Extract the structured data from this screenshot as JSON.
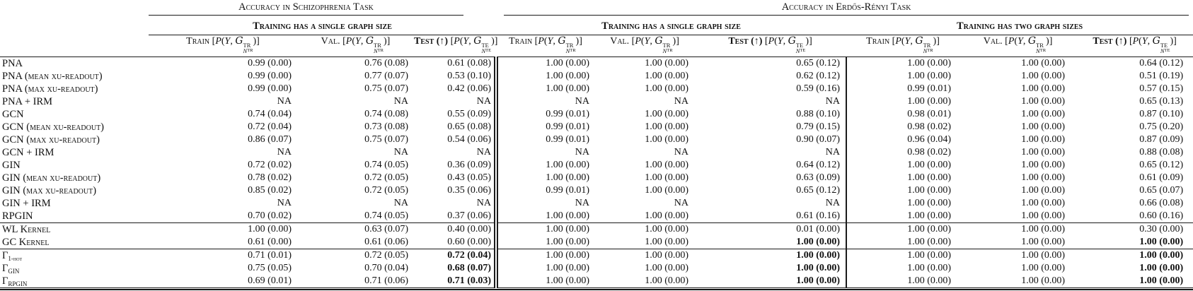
{
  "table": {
    "groups": [
      {
        "title": "Accuracy in Schizophrenia Task"
      },
      {
        "title": "Accuracy in Erdős-Rényi Task"
      }
    ],
    "subgroups": [
      {
        "title": "Training has a single graph size"
      },
      {
        "title": "Training has a single graph size"
      },
      {
        "title": "Training has two graph sizes"
      }
    ],
    "col_headers": [
      {
        "key": "schizo-train",
        "label": "Train",
        "bold": false,
        "arrow": "",
        "formula": {
          "open": "[",
          "func": "P",
          "lp": "(",
          "y": "Y",
          "sep": ", ",
          "g": "G",
          "g_sup": "TR",
          "n_base": "N",
          "n_sup": "TR",
          "close": ")]"
        }
      },
      {
        "key": "schizo-val",
        "label": "Val.",
        "bold": false,
        "arrow": "",
        "formula": {
          "open": "[",
          "func": "P",
          "lp": "(",
          "y": "Y",
          "sep": ", ",
          "g": "G",
          "g_sup": "TR",
          "n_base": "N",
          "n_sup": "TR",
          "close": ")]"
        }
      },
      {
        "key": "schizo-test",
        "label": "Test",
        "bold": true,
        "arrow": "(↑)",
        "formula": {
          "open": "[",
          "func": "P",
          "lp": "(",
          "y": "Y",
          "sep": ", ",
          "g": "G",
          "g_sup": "TE",
          "n_base": "N",
          "n_sup": "TE",
          "close": ")]"
        }
      },
      {
        "key": "er-single-train",
        "label": "Train",
        "bold": false,
        "arrow": "",
        "formula": {
          "open": "[",
          "func": "P",
          "lp": "(",
          "y": "Y",
          "sep": ", ",
          "g": "G",
          "g_sup": "TR",
          "n_base": "N",
          "n_sup": "TR",
          "close": ")]"
        }
      },
      {
        "key": "er-single-val",
        "label": "Val.",
        "bold": false,
        "arrow": "",
        "formula": {
          "open": "[",
          "func": "P",
          "lp": "(",
          "y": "Y",
          "sep": ", ",
          "g": "G",
          "g_sup": "TR",
          "n_base": "N",
          "n_sup": "TR",
          "close": ")]"
        }
      },
      {
        "key": "er-single-test",
        "label": "Test",
        "bold": true,
        "arrow": "(↑)",
        "formula": {
          "open": "[",
          "func": "P",
          "lp": "(",
          "y": "Y",
          "sep": ", ",
          "g": "G",
          "g_sup": "TE",
          "n_base": "N",
          "n_sup": "TE",
          "close": ")]"
        }
      },
      {
        "key": "er-two-train",
        "label": "Train",
        "bold": false,
        "arrow": "",
        "formula": {
          "open": "[",
          "func": "P",
          "lp": "(",
          "y": "Y",
          "sep": ", ",
          "g": "G",
          "g_sup": "TR",
          "n_base": "N",
          "n_sup": "TR",
          "close": ")]"
        }
      },
      {
        "key": "er-two-val",
        "label": "Val.",
        "bold": false,
        "arrow": "",
        "formula": {
          "open": "[",
          "func": "P",
          "lp": "(",
          "y": "Y",
          "sep": ", ",
          "g": "G",
          "g_sup": "TR",
          "n_base": "N",
          "n_sup": "TR",
          "close": ")]"
        }
      },
      {
        "key": "er-two-test",
        "label": "Test",
        "bold": true,
        "arrow": "(↑)",
        "formula": {
          "open": "[",
          "func": "P",
          "lp": "(",
          "y": "Y",
          "sep": ", ",
          "g": "G",
          "g_sup": "TE",
          "n_base": "N",
          "n_sup": "TE",
          "close": ")]"
        }
      }
    ],
    "rows": [
      {
        "label": "PNA",
        "sub": "",
        "rule_above": false,
        "bold": [],
        "cells": [
          "0.99 (0.00)",
          "0.76 (0.08)",
          "0.61 (0.08)",
          "1.00 (0.00)",
          "1.00 (0.00)",
          "0.65 (0.12)",
          "1.00 (0.00)",
          "1.00 (0.00)",
          "0.64 (0.12)"
        ]
      },
      {
        "label": "PNA (mean xu-readout)",
        "sub": "",
        "rule_above": false,
        "bold": [],
        "cells": [
          "0.99 (0.00)",
          "0.77 (0.07)",
          "0.53 (0.10)",
          "1.00 (0.00)",
          "1.00 (0.00)",
          "0.62 (0.12)",
          "1.00 (0.00)",
          "1.00 (0.00)",
          "0.51 (0.19)"
        ]
      },
      {
        "label": "PNA (max xu-readout)",
        "sub": "",
        "rule_above": false,
        "bold": [],
        "cells": [
          "0.99 (0.00)",
          "0.75 (0.07)",
          "0.42 (0.06)",
          "1.00 (0.00)",
          "1.00 (0.00)",
          "0.59 (0.16)",
          "0.99 (0.01)",
          "1.00 (0.00)",
          "0.57 (0.15)"
        ]
      },
      {
        "label": "PNA + IRM",
        "sub": "",
        "rule_above": false,
        "bold": [],
        "cells": [
          "NA",
          "NA",
          "NA",
          "NA",
          "NA",
          "NA",
          "1.00 (0.00)",
          "1.00 (0.00)",
          "0.65 (0.13)"
        ]
      },
      {
        "label": "GCN",
        "sub": "",
        "rule_above": false,
        "bold": [],
        "cells": [
          "0.74 (0.04)",
          "0.74 (0.08)",
          "0.55 (0.09)",
          "0.99 (0.01)",
          "1.00 (0.00)",
          "0.88 (0.10)",
          "0.98 (0.01)",
          "1.00 (0.00)",
          "0.87 (0.10)"
        ]
      },
      {
        "label": "GCN (mean xu-readout)",
        "sub": "",
        "rule_above": false,
        "bold": [],
        "cells": [
          "0.72 (0.04)",
          "0.73 (0.08)",
          "0.65 (0.08)",
          "0.99 (0.01)",
          "1.00 (0.00)",
          "0.79 (0.15)",
          "0.98 (0.02)",
          "1.00 (0.00)",
          "0.75 (0.20)"
        ]
      },
      {
        "label": "GCN (max xu-readout)",
        "sub": "",
        "rule_above": false,
        "bold": [],
        "cells": [
          "0.86 (0.07)",
          "0.75 (0.07)",
          "0.54 (0.06)",
          "0.99 (0.01)",
          "1.00 (0.00)",
          "0.90 (0.07)",
          "0.96 (0.04)",
          "1.00 (0.00)",
          "0.87 (0.09)"
        ]
      },
      {
        "label": "GCN + IRM",
        "sub": "",
        "rule_above": false,
        "bold": [],
        "cells": [
          "NA",
          "NA",
          "NA",
          "NA",
          "NA",
          "NA",
          "0.98 (0.02)",
          "1.00 (0.00)",
          "0.88 (0.08)"
        ]
      },
      {
        "label": "GIN",
        "sub": "",
        "rule_above": false,
        "bold": [],
        "cells": [
          "0.72 (0.02)",
          "0.74 (0.05)",
          "0.36 (0.09)",
          "1.00 (0.00)",
          "1.00 (0.00)",
          "0.64 (0.12)",
          "1.00 (0.00)",
          "1.00 (0.00)",
          "0.65 (0.12)"
        ]
      },
      {
        "label": "GIN (mean xu-readout)",
        "sub": "",
        "rule_above": false,
        "bold": [],
        "cells": [
          "0.78 (0.02)",
          "0.72 (0.05)",
          "0.43 (0.05)",
          "1.00 (0.00)",
          "1.00 (0.00)",
          "0.63 (0.09)",
          "1.00 (0.00)",
          "1.00 (0.00)",
          "0.61 (0.09)"
        ]
      },
      {
        "label": "GIN (max xu-readout)",
        "sub": "",
        "rule_above": false,
        "bold": [],
        "cells": [
          "0.85 (0.02)",
          "0.72 (0.05)",
          "0.35 (0.06)",
          "0.99 (0.01)",
          "1.00 (0.00)",
          "0.65 (0.12)",
          "1.00 (0.00)",
          "1.00 (0.00)",
          "0.65 (0.07)"
        ]
      },
      {
        "label": "GIN + IRM",
        "sub": "",
        "rule_above": false,
        "bold": [],
        "cells": [
          "NA",
          "NA",
          "NA",
          "NA",
          "NA",
          "NA",
          "1.00 (0.00)",
          "1.00 (0.00)",
          "0.66 (0.08)"
        ]
      },
      {
        "label": "RPGIN",
        "sub": "",
        "rule_above": false,
        "bold": [],
        "cells": [
          "0.70 (0.02)",
          "0.74 (0.05)",
          "0.37 (0.06)",
          "1.00 (0.00)",
          "1.00 (0.00)",
          "0.61 (0.16)",
          "1.00 (0.00)",
          "1.00 (0.00)",
          "0.60 (0.16)"
        ]
      },
      {
        "label": "WL Kernel",
        "sub": "",
        "rule_above": true,
        "bold": [],
        "cells": [
          "1.00 (0.00)",
          "0.63 (0.07)",
          "0.40 (0.00)",
          "1.00 (0.00)",
          "1.00 (0.00)",
          "0.01 (0.00)",
          "1.00 (0.00)",
          "1.00 (0.00)",
          "0.30 (0.00)"
        ]
      },
      {
        "label": "GC Kernel",
        "sub": "",
        "rule_above": false,
        "bold": [
          5,
          8
        ],
        "cells": [
          "0.61 (0.00)",
          "0.61 (0.06)",
          "0.60 (0.00)",
          "1.00 (0.00)",
          "1.00 (0.00)",
          "1.00 (0.00)",
          "1.00 (0.00)",
          "1.00 (0.00)",
          "1.00 (0.00)"
        ]
      },
      {
        "label": "Γ",
        "sub": "1-hot",
        "rule_above": true,
        "bold": [
          2,
          5,
          8
        ],
        "cells": [
          "0.71 (0.01)",
          "0.72 (0.05)",
          "0.72 (0.04)",
          "1.00 (0.00)",
          "1.00 (0.00)",
          "1.00 (0.00)",
          "1.00 (0.00)",
          "1.00 (0.00)",
          "1.00 (0.00)"
        ]
      },
      {
        "label": "Γ",
        "sub": "GIN",
        "rule_above": false,
        "bold": [
          2,
          5,
          8
        ],
        "cells": [
          "0.75 (0.05)",
          "0.70 (0.04)",
          "0.68 (0.07)",
          "1.00 (0.00)",
          "1.00 (0.00)",
          "1.00 (0.00)",
          "1.00 (0.00)",
          "1.00 (0.00)",
          "1.00 (0.00)"
        ]
      },
      {
        "label": "Γ",
        "sub": "RPGIN",
        "rule_above": false,
        "bold": [
          2,
          5,
          8
        ],
        "cells": [
          "0.69 (0.01)",
          "0.71 (0.06)",
          "0.71 (0.03)",
          "1.00 (0.00)",
          "1.00 (0.00)",
          "1.00 (0.00)",
          "1.00 (0.00)",
          "1.00 (0.00)",
          "1.00 (0.00)"
        ]
      }
    ],
    "na_text": "NA"
  }
}
